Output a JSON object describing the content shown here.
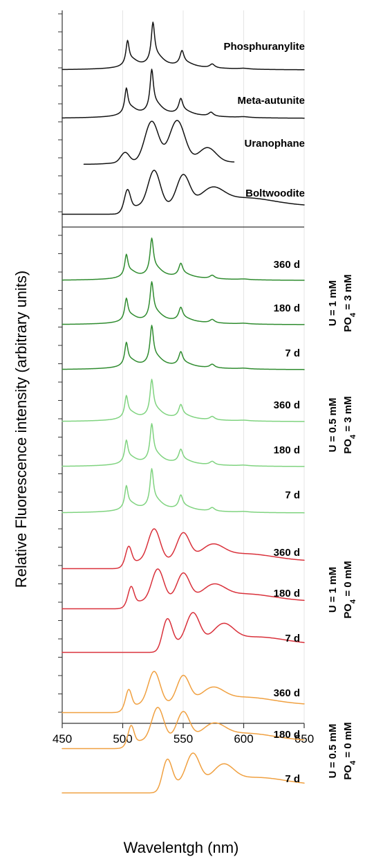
{
  "chart_data": {
    "type": "line",
    "xlabel": "Wavelentgh (nm)",
    "ylabel": "Relative Fluorescence intensity (arbitrary units)",
    "xlim": [
      450,
      650
    ],
    "xticks": [
      450,
      500,
      550,
      600,
      650
    ],
    "grid": "vertical",
    "references": [
      {
        "name": "Phosphuranylite",
        "x_range": [
          450,
          650
        ],
        "peaks": [
          504,
          525,
          549,
          574
        ],
        "color": "#111111"
      },
      {
        "name": "Meta-autunite",
        "x_range": [
          450,
          650
        ],
        "peaks": [
          503,
          524,
          548,
          573
        ],
        "color": "#111111"
      },
      {
        "name": "Uranophane",
        "x_range": [
          468,
          592
        ],
        "peaks": [
          502,
          524,
          545,
          570
        ],
        "color": "#111111"
      },
      {
        "name": "Boltwoodite",
        "x_range": [
          450,
          650
        ],
        "peaks": [
          504,
          526,
          550,
          574
        ],
        "color": "#111111"
      }
    ],
    "series": [
      {
        "name": "360 d",
        "group": "U = 1 mM, PO4 = 3 mM",
        "color": "#2e8b2e",
        "peaks": [
          503,
          524,
          548,
          574
        ]
      },
      {
        "name": "180 d",
        "group": "U = 1 mM, PO4 = 3 mM",
        "color": "#2e8b2e",
        "peaks": [
          503,
          524,
          548,
          574
        ]
      },
      {
        "name": "7 d",
        "group": "U = 1 mM, PO4 = 3 mM",
        "color": "#2e8b2e",
        "peaks": [
          503,
          524,
          548,
          574
        ]
      },
      {
        "name": "360 d",
        "group": "U = 0.5 mM, PO4 = 3 mM",
        "color": "#7fd37f",
        "peaks": [
          503,
          524,
          548,
          574
        ]
      },
      {
        "name": "180 d",
        "group": "U = 0.5 mM, PO4 = 3 mM",
        "color": "#7fd37f",
        "peaks": [
          503,
          524,
          548,
          574
        ]
      },
      {
        "name": "7 d",
        "group": "U = 0.5 mM, PO4 = 3 mM",
        "color": "#7fd37f",
        "peaks": [
          503,
          524,
          548,
          574
        ]
      },
      {
        "name": "360 d",
        "group": "U = 1 mM, PO4 = 0 mM",
        "color": "#d9303a",
        "peaks": [
          505,
          526,
          550,
          574
        ]
      },
      {
        "name": "180 d",
        "group": "U = 1 mM, PO4 = 0 mM",
        "color": "#d9303a",
        "peaks": [
          507,
          529,
          550,
          575
        ]
      },
      {
        "name": "7 d",
        "group": "U = 1 mM, PO4 = 0 mM",
        "color": "#d9303a",
        "peaks": [
          537,
          558,
          583
        ]
      },
      {
        "name": "360 d",
        "group": "U = 0.5 mM, PO4 = 0 mM",
        "color": "#f0a040",
        "peaks": [
          505,
          526,
          550,
          574
        ]
      },
      {
        "name": "180 d",
        "group": "U = 0.5 mM, PO4 = 0 mM",
        "color": "#f0a040",
        "peaks": [
          507,
          529,
          550,
          575
        ]
      },
      {
        "name": "7 d",
        "group": "U = 0.5 mM, PO4 = 0 mM",
        "color": "#f0a040",
        "peaks": [
          537,
          558,
          583
        ]
      }
    ],
    "groups": [
      {
        "line1": "U = 1 mM",
        "line2_prefix": "PO",
        "line2_sub": "4",
        "line2_suffix": " = 3 mM"
      },
      {
        "line1": "U = 0.5 mM",
        "line2_prefix": "PO",
        "line2_sub": "4",
        "line2_suffix": " = 3 mM"
      },
      {
        "line1": "U = 1 mM",
        "line2_prefix": "PO",
        "line2_sub": "4",
        "line2_suffix": " = 0 mM"
      },
      {
        "line1": "U = 0.5 mM",
        "line2_prefix": "PO",
        "line2_sub": "4",
        "line2_suffix": " = 0 mM"
      }
    ]
  }
}
